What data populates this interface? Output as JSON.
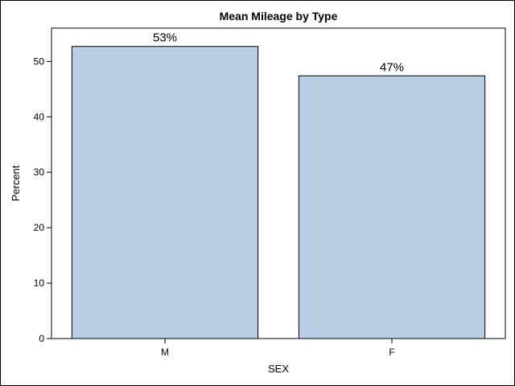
{
  "chart_data": {
    "type": "bar",
    "title": "Mean Mileage by Type",
    "xlabel": "SEX",
    "ylabel": "Percent",
    "categories": [
      "M",
      "F"
    ],
    "values": [
      52.7,
      47.4
    ],
    "data_labels": [
      "53%",
      "47%"
    ],
    "ylim": [
      0,
      56
    ],
    "yticks": [
      0,
      10,
      20,
      30,
      40,
      50
    ],
    "grid": false,
    "legend": "none",
    "bar_color": "#b9cde5",
    "bar_outline_color": "#000000"
  }
}
